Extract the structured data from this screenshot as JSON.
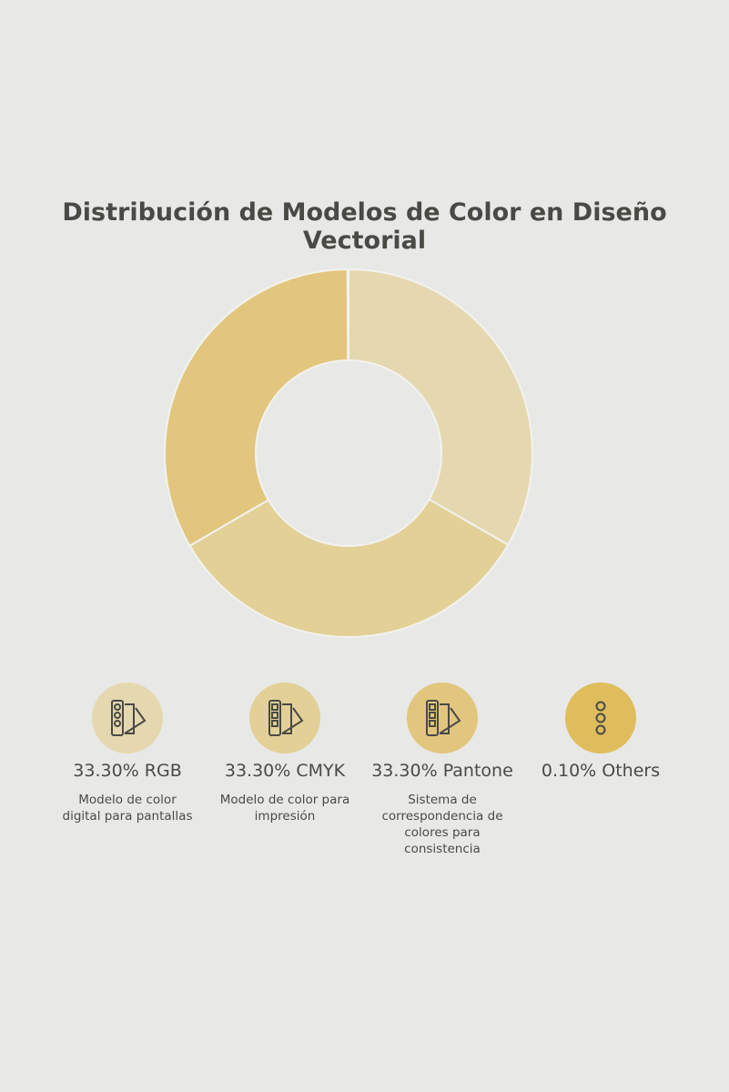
{
  "chart_data": {
    "type": "donut",
    "title": "Distribución de Modelos de Color en Diseño Vectorial",
    "categories": [
      "RGB",
      "CMYK",
      "Pantone",
      "Others"
    ],
    "values": [
      33.3,
      33.3,
      33.3,
      0.1
    ],
    "value_labels": [
      "33.30%",
      "33.30%",
      "33.30%",
      "0.10%"
    ],
    "colors": [
      "#e5d8b0",
      "#e2d097",
      "#e2c67e",
      "#e0bd5c"
    ],
    "descriptions": [
      "Modelo de color digital para pantallas",
      "Modelo de color para impresión",
      "Sistema de correspondencia de colores para consistencia",
      null
    ]
  }
}
